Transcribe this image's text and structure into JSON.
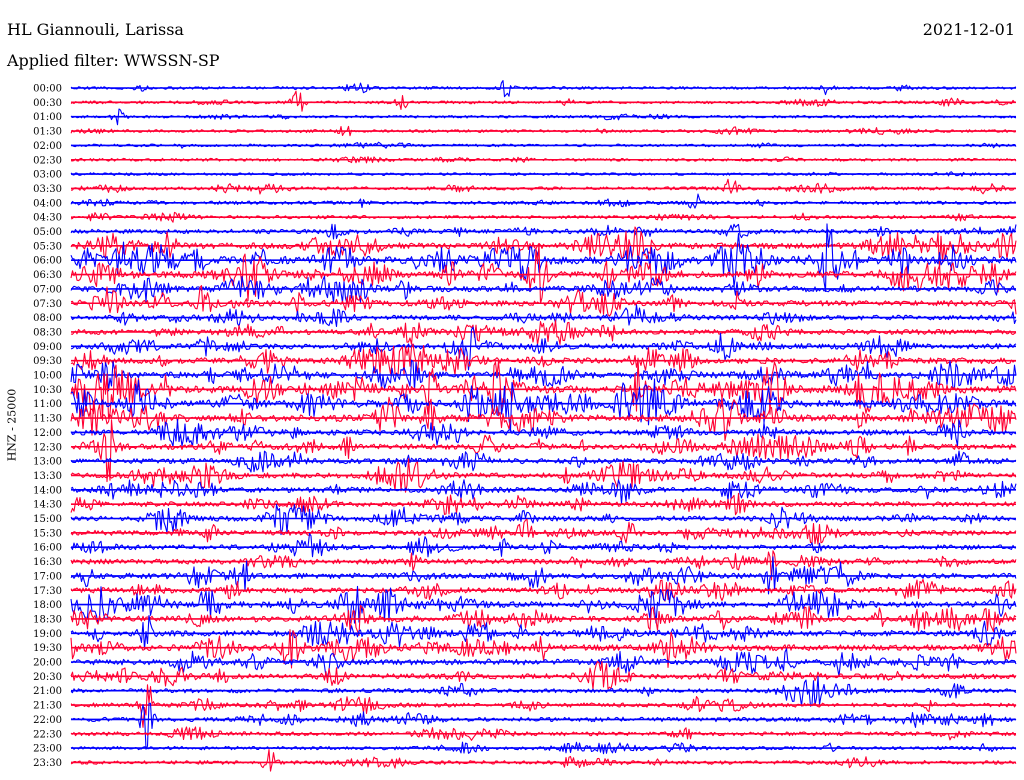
{
  "header": {
    "station": "HL Giannouli, Larissa",
    "date": "2021-12-01",
    "filter": "Applied filter: WWSSN-SP"
  },
  "chart_data": {
    "type": "line",
    "title": "HL Giannouli, Larissa",
    "date": "2021-12-01",
    "ylabel": "HNZ - 25000",
    "trace_times": [
      "00:00",
      "00:30",
      "01:00",
      "01:30",
      "02:00",
      "02:30",
      "03:00",
      "03:30",
      "04:00",
      "04:30",
      "05:00",
      "05:30",
      "06:00",
      "06:30",
      "07:00",
      "07:30",
      "08:00",
      "08:30",
      "09:00",
      "09:30",
      "10:00",
      "10:30",
      "11:00",
      "11:30",
      "12:00",
      "12:30",
      "13:00",
      "13:30",
      "14:00",
      "14:30",
      "15:00",
      "15:30",
      "16:00",
      "16:30",
      "17:00",
      "17:30",
      "18:00",
      "18:30",
      "19:00",
      "19:30",
      "20:00",
      "20:30",
      "21:00",
      "21:30",
      "22:00",
      "22:30",
      "23:00",
      "23:30"
    ],
    "trace_colors": [
      "#0000ff",
      "#ff0033"
    ],
    "relative_activity": [
      0.4,
      0.4,
      0.3,
      0.4,
      0.3,
      0.4,
      0.3,
      0.6,
      0.6,
      0.6,
      1.0,
      1.6,
      2.2,
      1.9,
      1.5,
      1.5,
      1.1,
      1.3,
      1.3,
      1.5,
      1.7,
      2.1,
      2.1,
      1.9,
      1.4,
      1.4,
      1.3,
      1.3,
      1.3,
      1.2,
      1.2,
      1.2,
      1.1,
      1.2,
      1.4,
      1.3,
      1.6,
      1.6,
      1.5,
      1.6,
      1.5,
      1.3,
      0.9,
      0.9,
      1.0,
      0.8,
      0.6,
      0.7
    ],
    "event_spikes": [
      {
        "trace": "00:00",
        "x": 0.46,
        "amp": 1.5
      },
      {
        "trace": "00:00",
        "x": 0.8,
        "amp": 1.0
      },
      {
        "trace": "00:30",
        "x": 0.24,
        "amp": 2.0
      },
      {
        "trace": "00:30",
        "x": 0.35,
        "amp": 1.0
      },
      {
        "trace": "01:00",
        "x": 0.05,
        "amp": 1.2
      },
      {
        "trace": "01:30",
        "x": 0.29,
        "amp": 1.0
      },
      {
        "trace": "03:30",
        "x": 0.7,
        "amp": 2.0
      },
      {
        "trace": "04:00",
        "x": 0.66,
        "amp": 1.5
      },
      {
        "trace": "05:30",
        "x": 0.92,
        "amp": 3.0
      },
      {
        "trace": "06:00",
        "x": 0.2,
        "amp": 3.0
      },
      {
        "trace": "06:00",
        "x": 0.8,
        "amp": 2.5
      },
      {
        "trace": "09:00",
        "x": 0.42,
        "amp": 4.0
      },
      {
        "trace": "10:30",
        "x": 0.38,
        "amp": 4.5
      },
      {
        "trace": "10:30",
        "x": 0.45,
        "amp": 3.5
      },
      {
        "trace": "10:30",
        "x": 0.6,
        "amp": 4.0
      },
      {
        "trace": "11:30",
        "x": 0.38,
        "amp": 5.0
      },
      {
        "trace": "12:30",
        "x": 0.04,
        "amp": 4.0
      },
      {
        "trace": "15:30",
        "x": 0.48,
        "amp": 3.0
      },
      {
        "trace": "16:30",
        "x": 0.74,
        "amp": 2.5
      },
      {
        "trace": "17:00",
        "x": 0.74,
        "amp": 3.0
      },
      {
        "trace": "18:00",
        "x": 0.3,
        "amp": 3.0
      },
      {
        "trace": "19:00",
        "x": 0.08,
        "amp": 3.0
      },
      {
        "trace": "21:30",
        "x": 0.08,
        "amp": 5.0
      },
      {
        "trace": "22:00",
        "x": 0.08,
        "amp": 4.0
      },
      {
        "trace": "23:30",
        "x": 0.21,
        "amp": 2.0
      }
    ]
  }
}
